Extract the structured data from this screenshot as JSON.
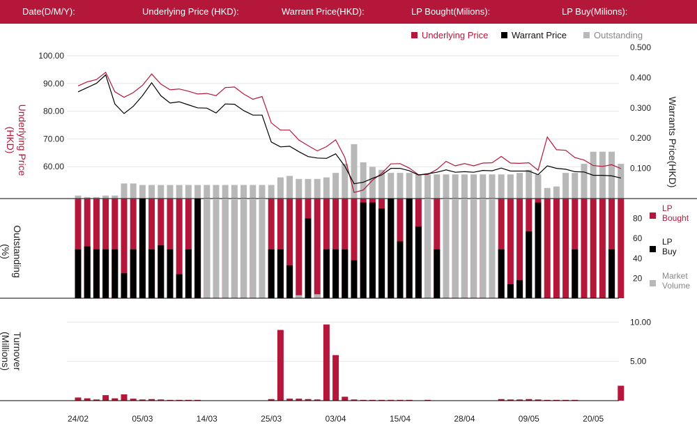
{
  "header": {
    "fields": [
      {
        "label": "Date(D/M/Y):",
        "value": ""
      },
      {
        "label": "Underlying Price (HKD):",
        "value": ""
      },
      {
        "label": "Warrant  Price(HKD):",
        "value": ""
      },
      {
        "label": "LP Bought(Milions):",
        "value": ""
      },
      {
        "label": "LP Buy(Milions):",
        "value": ""
      }
    ]
  },
  "legend_top": [
    {
      "label": "Underlying Price",
      "color": "#b5173a"
    },
    {
      "label": "Warrant  Price",
      "color": "#000000"
    },
    {
      "label": "Outstanding",
      "color": "#b8b8b8"
    }
  ],
  "legend_mid": [
    {
      "line1": "LP",
      "line2": "Bought",
      "color": "#b5173a"
    },
    {
      "line1": "LP",
      "line2": "Buy",
      "color": "#000000"
    },
    {
      "line1": "Market",
      "line2": "Volume",
      "color": "#b8b8b8"
    }
  ],
  "colors": {
    "underlying": "#b5173a",
    "warrant": "#000000",
    "outstanding": "#b8b8b8",
    "grid": "#e6e6e6"
  },
  "chart_data": [
    {
      "type": "line",
      "ylabel": "Underlying Price\n(HKD)",
      "y2label": "Warrants  Price(HKD)",
      "ylim": [
        48.5,
        103
      ],
      "y_ticks": [
        "100.00",
        "90.00",
        "80.00",
        "70.00",
        "60.00"
      ],
      "y_tick_values": [
        100,
        90,
        80,
        70,
        60
      ],
      "y2lim": [
        0.0,
        0.5
      ],
      "y2_ticks": [
        "0.500",
        "0.400",
        "0.300",
        "0.200",
        "0.100"
      ],
      "y2_tick_values": [
        0.5,
        0.4,
        0.3,
        0.2,
        0.1
      ],
      "grid": true,
      "series": [
        {
          "name": "Underlying Price",
          "axis": "left",
          "values": [
            89.1,
            90.6,
            91.4,
            94.0,
            87.0,
            85.0,
            86.7,
            89.3,
            93.4,
            89.8,
            87.7,
            88.0,
            87.2,
            86.2,
            86.4,
            85.6,
            88.5,
            88.7,
            86.2,
            84.3,
            85.3,
            75.8,
            73.2,
            73.2,
            69.6,
            67.6,
            65.7,
            67.2,
            69.7,
            63.3,
            50.7,
            51.6,
            55.1,
            57.6,
            61.0,
            61.1,
            59.5,
            57.1,
            57.2,
            59.0,
            61.9,
            60.3,
            61.1,
            60.3,
            61.3,
            61.4,
            63.7,
            61.3,
            61.2,
            61.4,
            58.7,
            70.7,
            66.1,
            65.9,
            63.3,
            62.4,
            60.4,
            60.1,
            60.7,
            59.3
          ]
        },
        {
          "name": "Warrant  Price",
          "axis": "right",
          "values": [
            0.353,
            0.367,
            0.381,
            0.409,
            0.313,
            0.281,
            0.305,
            0.34,
            0.383,
            0.34,
            0.316,
            0.32,
            0.31,
            0.3,
            0.299,
            0.283,
            0.313,
            0.312,
            0.291,
            0.276,
            0.276,
            0.187,
            0.171,
            0.173,
            0.155,
            0.139,
            0.134,
            0.133,
            0.148,
            0.107,
            0.049,
            0.054,
            0.067,
            0.078,
            0.1,
            0.1,
            0.092,
            0.078,
            0.082,
            0.087,
            0.095,
            0.087,
            0.089,
            0.087,
            0.093,
            0.092,
            0.101,
            0.091,
            0.091,
            0.091,
            0.079,
            0.108,
            0.1,
            0.097,
            0.089,
            0.088,
            0.077,
            0.077,
            0.075,
            0.068
          ]
        },
        {
          "name": "Outstanding",
          "type": "bar",
          "values": [
            2,
            1,
            1,
            2,
            2,
            10,
            10,
            9,
            9,
            9,
            9,
            9,
            9,
            9,
            9,
            9,
            9,
            9,
            9,
            9,
            9,
            9,
            14,
            15,
            13,
            13,
            13,
            14,
            17,
            23,
            36,
            24,
            21,
            19,
            17,
            17,
            17,
            16,
            16,
            16,
            16,
            16,
            16,
            16,
            16,
            16,
            16,
            16,
            17,
            19,
            16,
            7,
            8,
            17,
            17,
            23,
            31,
            31,
            31,
            23
          ]
        }
      ]
    },
    {
      "type": "bar",
      "ylabel": "Outstanding\n(%)",
      "ylim": [
        0,
        100
      ],
      "y_ticks": [
        "80",
        "60",
        "40",
        "20"
      ],
      "y_tick_values": [
        80,
        60,
        40,
        20
      ],
      "series": [
        {
          "name": "LP Bought",
          "values": [
            100,
            100,
            100,
            100,
            100,
            100,
            100,
            100,
            100,
            100,
            100,
            100,
            100,
            100,
            100,
            100,
            100,
            100,
            100,
            100,
            100,
            100,
            100,
            100,
            100,
            100,
            100,
            100,
            100,
            100,
            100,
            100,
            100,
            100,
            100,
            100,
            100,
            100,
            100,
            100,
            100,
            100,
            100,
            100,
            100,
            100,
            100,
            100,
            100,
            100,
            100,
            100,
            100,
            100,
            100,
            100,
            100,
            100,
            100,
            100
          ]
        },
        {
          "name": "LP Buy",
          "values": [
            49,
            52,
            49,
            49,
            49,
            25,
            49,
            100,
            49,
            53,
            49,
            24,
            49,
            100,
            0,
            0,
            0,
            0,
            0,
            0,
            0,
            49,
            49,
            33,
            0,
            80,
            0,
            49,
            49,
            49,
            38,
            96,
            96,
            90,
            100,
            57,
            100,
            72,
            0,
            49,
            0,
            0,
            0,
            0,
            0,
            0,
            49,
            14,
            18,
            67,
            96,
            0,
            0,
            0,
            49,
            0,
            0,
            0,
            49,
            0
          ]
        },
        {
          "name": "Market Volume",
          "values": [
            0,
            0,
            0,
            0,
            0,
            0,
            0,
            0,
            4,
            0,
            0,
            0,
            0,
            0,
            100,
            100,
            100,
            100,
            100,
            100,
            100,
            0,
            0,
            2,
            3,
            2,
            4,
            1,
            0,
            0,
            0,
            0,
            0,
            0,
            0,
            0,
            0,
            0,
            100,
            0,
            100,
            100,
            100,
            100,
            100,
            100,
            0,
            0,
            0,
            0,
            0,
            0,
            0,
            0,
            0,
            0,
            0,
            0,
            0,
            0
          ]
        }
      ]
    },
    {
      "type": "bar",
      "ylabel": "Turnover\n(Millions)",
      "ylim": [
        0,
        11
      ],
      "y_ticks": [
        "10.00",
        "5.00"
      ],
      "y_tick_values": [
        10,
        5
      ],
      "x_ticks": [
        "24/02",
        "05/03",
        "14/03",
        "25/03",
        "03/04",
        "15/04",
        "28/04",
        "09/05",
        "20/05"
      ],
      "x_tick_index": [
        0,
        7,
        14,
        21,
        28,
        35,
        42,
        49,
        56
      ],
      "series": [
        {
          "name": "Turnover",
          "values": [
            0.4,
            0.3,
            0.15,
            0.7,
            0.3,
            0.8,
            0.25,
            0.15,
            0.2,
            0.15,
            0.1,
            0.1,
            0.1,
            0.1,
            0,
            0,
            0,
            0,
            0,
            0,
            0,
            0.2,
            9.0,
            0.25,
            0.25,
            0.2,
            0.15,
            9.7,
            5.8,
            0.5,
            0.15,
            0.1,
            0.1,
            0.1,
            0.1,
            0.1,
            0.1,
            0,
            0.1,
            0,
            0,
            0,
            0,
            0,
            0,
            0,
            0.2,
            0.15,
            0.15,
            0.2,
            0.15,
            0.1,
            0.1,
            0.1,
            0.1,
            0,
            0,
            0,
            0,
            1.9
          ]
        }
      ]
    }
  ]
}
